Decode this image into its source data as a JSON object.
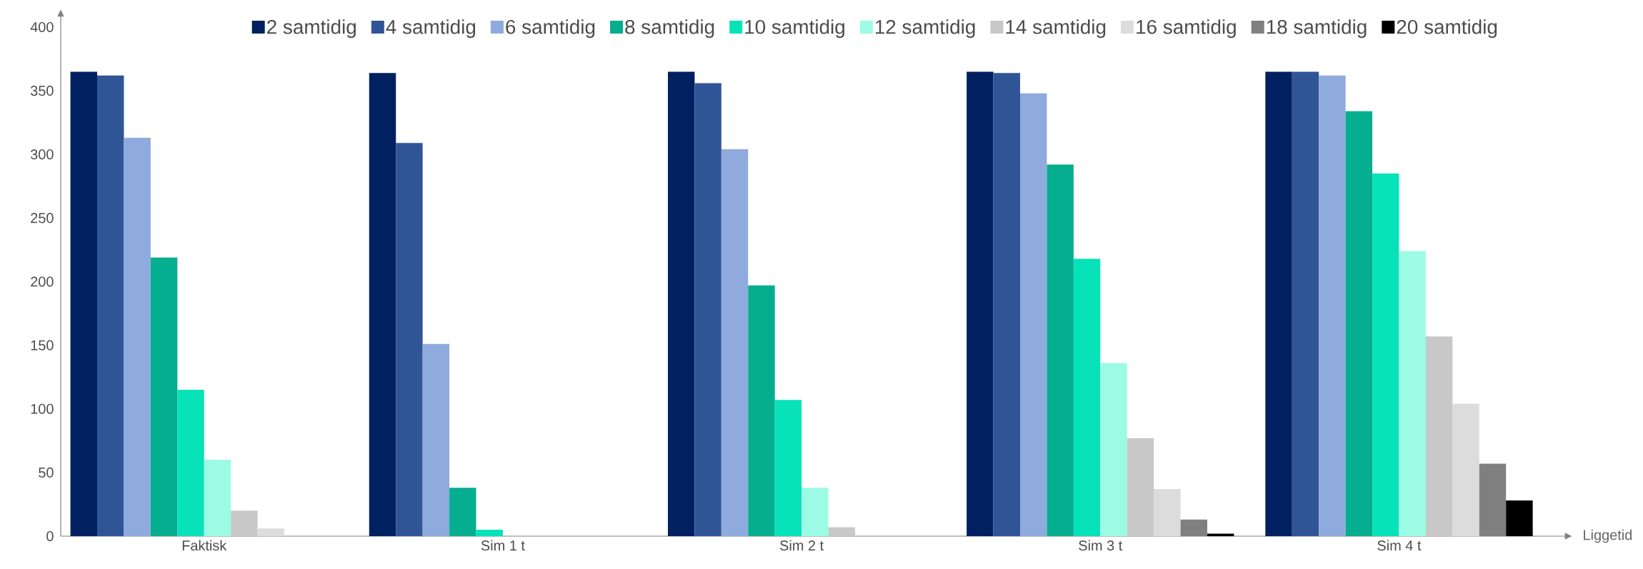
{
  "chart_data": {
    "type": "bar",
    "xlabel": "Liggetid",
    "categories": [
      "Faktisk",
      "Sim 1 t",
      "Sim 2 t",
      "Sim 3 t",
      "Sim 4 t"
    ],
    "series": [
      {
        "name": "2 samtidig",
        "color": "#002060",
        "values": [
          365,
          364,
          365,
          365,
          365
        ]
      },
      {
        "name": "4 samtidig",
        "color": "#2f5597",
        "values": [
          362,
          309,
          356,
          364,
          365
        ]
      },
      {
        "name": "6 samtidig",
        "color": "#8faadc",
        "values": [
          313,
          151,
          304,
          348,
          362
        ]
      },
      {
        "name": "8 samtidig",
        "color": "#05ae8f",
        "values": [
          219,
          38,
          197,
          292,
          334
        ]
      },
      {
        "name": "10 samtidig",
        "color": "#08e2b9",
        "values": [
          115,
          5,
          107,
          218,
          285
        ]
      },
      {
        "name": "12 samtidig",
        "color": "#9cfbe4",
        "values": [
          60,
          0,
          38,
          136,
          224
        ]
      },
      {
        "name": "14 samtidig",
        "color": "#c8c8c8",
        "values": [
          20,
          0,
          7,
          77,
          157
        ]
      },
      {
        "name": "16 samtidig",
        "color": "#dcdcdc",
        "values": [
          6,
          0,
          0,
          37,
          104
        ]
      },
      {
        "name": "18 samtidig",
        "color": "#808080",
        "values": [
          0,
          0,
          0,
          13,
          57
        ]
      },
      {
        "name": "20 samtidig",
        "color": "#000000",
        "values": [
          0,
          0,
          0,
          2,
          28
        ]
      }
    ],
    "ylim": [
      0,
      400
    ],
    "yticks": [
      0,
      50,
      100,
      150,
      200,
      250,
      300,
      350,
      400
    ],
    "legend": "top"
  }
}
